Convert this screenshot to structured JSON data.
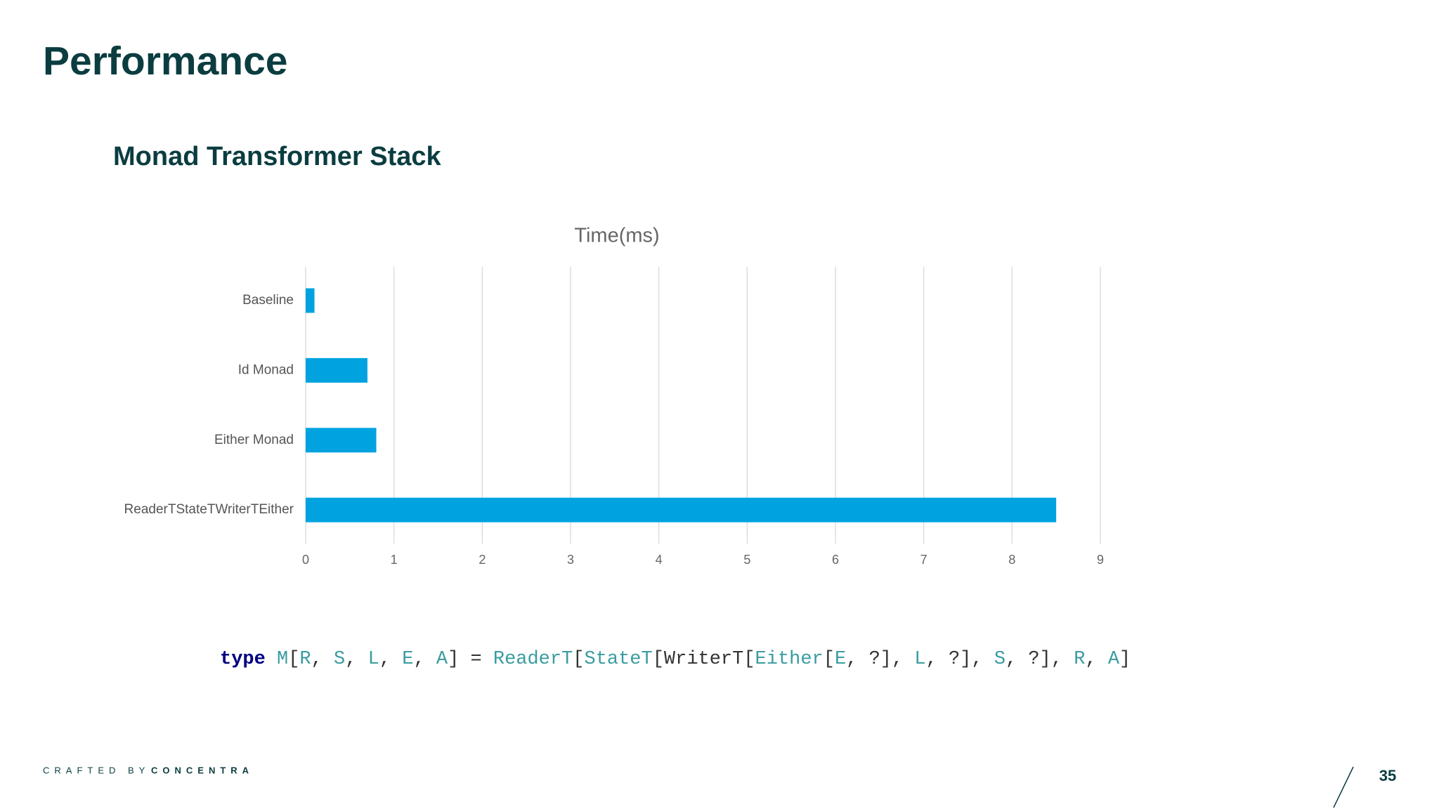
{
  "header": {
    "title": "Performance",
    "subtitle": "Monad Transformer Stack"
  },
  "chart_data": {
    "type": "hbar",
    "title": "Time(ms)",
    "categories": [
      "Baseline",
      "Id Monad",
      "Either Monad",
      "ReaderTStateTWriterTEither"
    ],
    "values": [
      0.1,
      0.7,
      0.8,
      8.5
    ],
    "color": "#00a3e0",
    "xlim": [
      0,
      9
    ],
    "xticks": [
      0,
      1,
      2,
      3,
      4,
      5,
      6,
      7,
      8,
      9
    ],
    "grid": true
  },
  "code": {
    "colors": {
      "keyword": "#000080",
      "ident": "#3a9ca0",
      "plain": "#333333"
    },
    "tokens": [
      {
        "text": "type",
        "kind": "keyword"
      },
      {
        "text": " ",
        "kind": "plain"
      },
      {
        "text": "M",
        "kind": "ident"
      },
      {
        "text": "[",
        "kind": "plain"
      },
      {
        "text": "R",
        "kind": "ident"
      },
      {
        "text": ", ",
        "kind": "plain"
      },
      {
        "text": "S",
        "kind": "ident"
      },
      {
        "text": ", ",
        "kind": "plain"
      },
      {
        "text": "L",
        "kind": "ident"
      },
      {
        "text": ", ",
        "kind": "plain"
      },
      {
        "text": "E",
        "kind": "ident"
      },
      {
        "text": ", ",
        "kind": "plain"
      },
      {
        "text": "A",
        "kind": "ident"
      },
      {
        "text": "] = ",
        "kind": "plain"
      },
      {
        "text": "ReaderT",
        "kind": "ident"
      },
      {
        "text": "[",
        "kind": "plain"
      },
      {
        "text": "StateT",
        "kind": "ident"
      },
      {
        "text": "[WriterT[",
        "kind": "plain"
      },
      {
        "text": "Either",
        "kind": "ident"
      },
      {
        "text": "[",
        "kind": "plain"
      },
      {
        "text": "E",
        "kind": "ident"
      },
      {
        "text": ", ?], ",
        "kind": "plain"
      },
      {
        "text": "L",
        "kind": "ident"
      },
      {
        "text": ", ?], ",
        "kind": "plain"
      },
      {
        "text": "S",
        "kind": "ident"
      },
      {
        "text": ", ?], ",
        "kind": "plain"
      },
      {
        "text": "R",
        "kind": "ident"
      },
      {
        "text": ", ",
        "kind": "plain"
      },
      {
        "text": "A",
        "kind": "ident"
      },
      {
        "text": "]",
        "kind": "plain"
      }
    ]
  },
  "footer": {
    "crafted": "CRAFTED BY",
    "brand": "CONCENTRA",
    "page": "35"
  }
}
